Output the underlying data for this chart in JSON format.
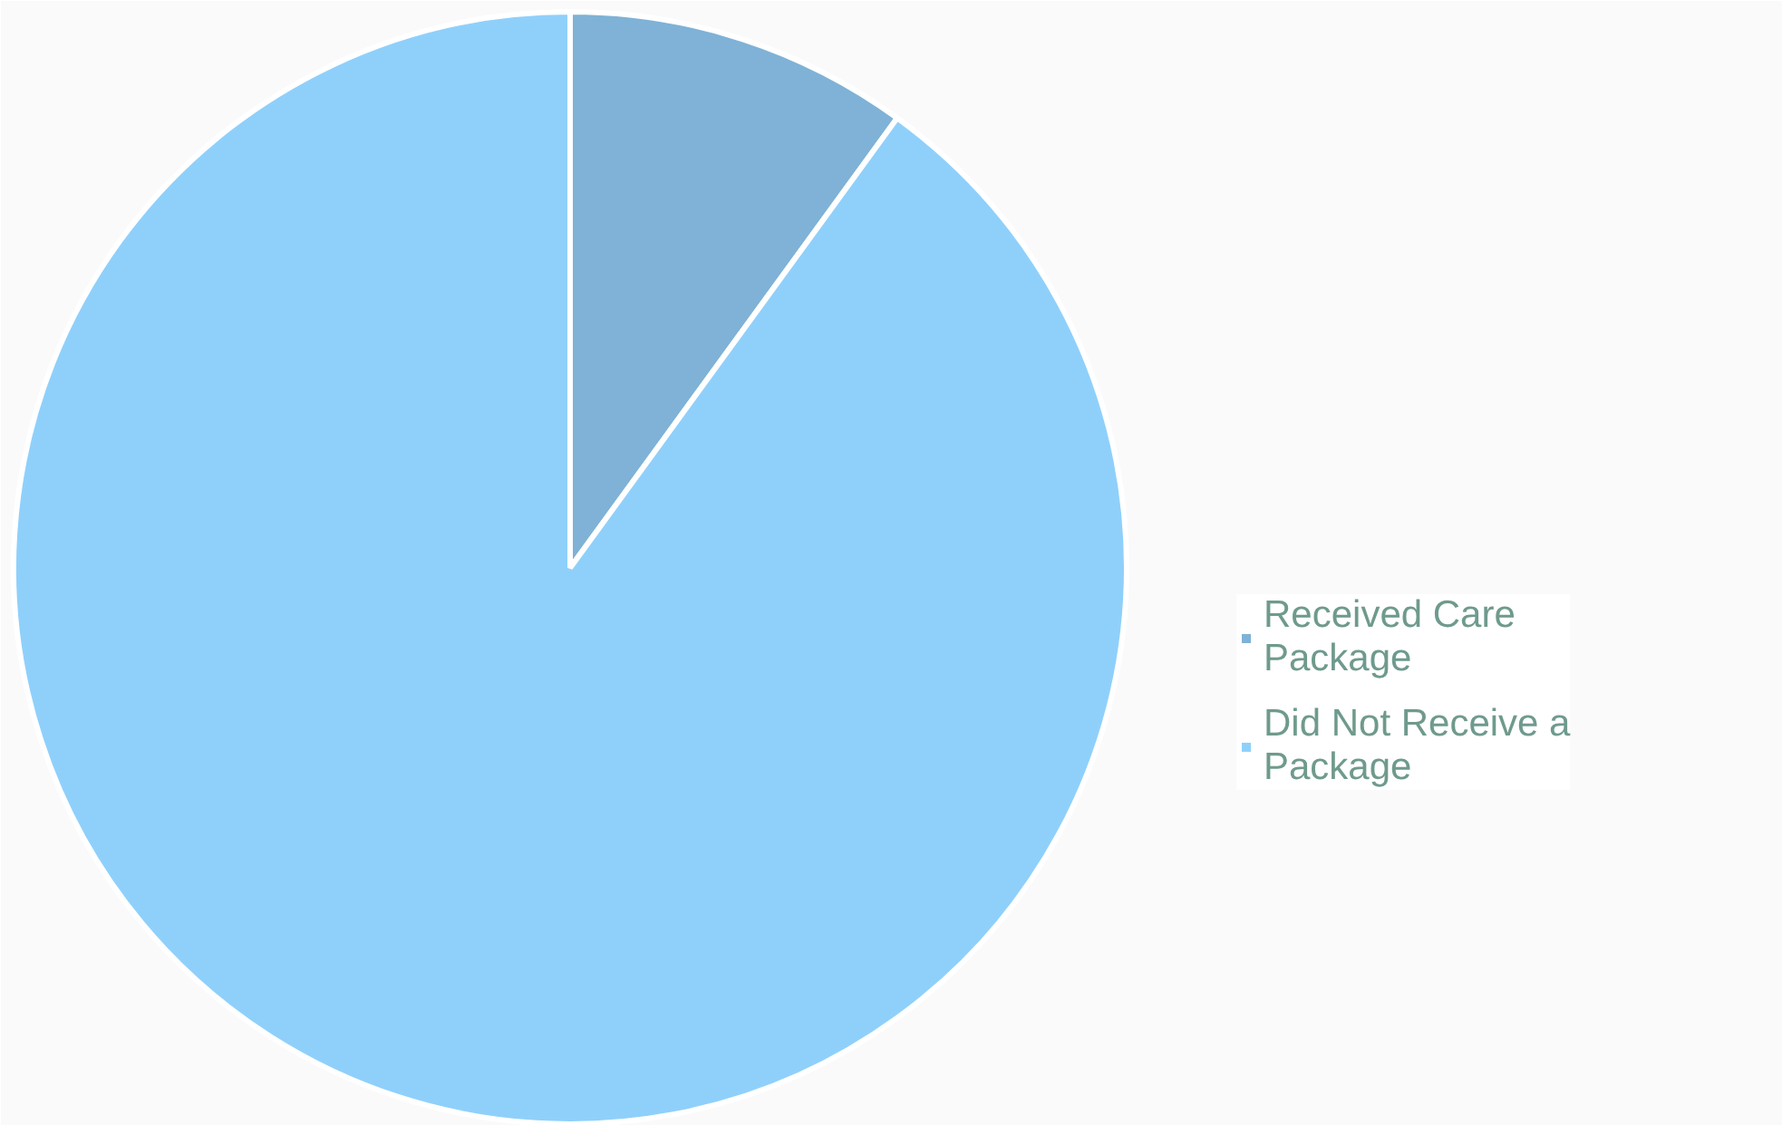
{
  "chart_data": {
    "type": "pie",
    "categories": [
      "Received Care Package",
      "Did Not Receive a Package"
    ],
    "values": [
      10,
      90
    ],
    "colors": [
      "#7fb2d6",
      "#8fd0fb"
    ],
    "legend": "right"
  }
}
